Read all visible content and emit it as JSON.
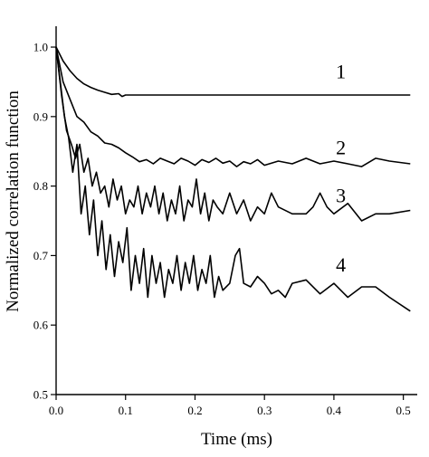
{
  "chart_data": {
    "type": "line",
    "xlabel": "Time (ms)",
    "ylabel": "Normalized correlation function",
    "xlim": [
      0.0,
      0.52
    ],
    "ylim": [
      0.5,
      1.03
    ],
    "xticks": [
      0.0,
      0.1,
      0.2,
      0.3,
      0.4,
      0.5
    ],
    "xtick_labels": [
      "0.0",
      "0.1",
      "0.2",
      "0.3",
      "0.4",
      "0.5"
    ],
    "yticks": [
      0.5,
      0.6,
      0.7,
      0.8,
      0.9,
      1.0
    ],
    "ytick_labels": [
      "0.5",
      "0.6",
      "0.7",
      "0.8",
      "0.9",
      "1.0"
    ],
    "grid": false,
    "legend": "none",
    "series": [
      {
        "label": "1",
        "label_at": [
          0.41,
          0.955
        ],
        "x": [
          0.0,
          0.01,
          0.02,
          0.03,
          0.04,
          0.05,
          0.06,
          0.07,
          0.08,
          0.09,
          0.095,
          0.1,
          0.51
        ],
        "y": [
          1.0,
          0.98,
          0.966,
          0.955,
          0.947,
          0.942,
          0.938,
          0.935,
          0.932,
          0.933,
          0.929,
          0.931,
          0.931
        ]
      },
      {
        "label": "2",
        "label_at": [
          0.41,
          0.846
        ],
        "x": [
          0.0,
          0.01,
          0.02,
          0.03,
          0.04,
          0.05,
          0.06,
          0.07,
          0.08,
          0.09,
          0.1,
          0.11,
          0.12,
          0.13,
          0.14,
          0.15,
          0.16,
          0.17,
          0.18,
          0.19,
          0.2,
          0.21,
          0.22,
          0.23,
          0.24,
          0.25,
          0.26,
          0.27,
          0.28,
          0.29,
          0.3,
          0.32,
          0.34,
          0.36,
          0.38,
          0.4,
          0.42,
          0.44,
          0.46,
          0.48,
          0.51
        ],
        "y": [
          1.0,
          0.95,
          0.925,
          0.9,
          0.892,
          0.878,
          0.872,
          0.862,
          0.86,
          0.855,
          0.848,
          0.842,
          0.835,
          0.838,
          0.832,
          0.84,
          0.836,
          0.832,
          0.84,
          0.836,
          0.83,
          0.838,
          0.834,
          0.84,
          0.833,
          0.836,
          0.828,
          0.835,
          0.832,
          0.838,
          0.83,
          0.836,
          0.832,
          0.84,
          0.832,
          0.836,
          0.832,
          0.828,
          0.84,
          0.836,
          0.832
        ]
      },
      {
        "label": "3",
        "label_at": [
          0.41,
          0.777
        ],
        "x": [
          0.0,
          0.008,
          0.015,
          0.022,
          0.028,
          0.034,
          0.04,
          0.046,
          0.052,
          0.058,
          0.064,
          0.07,
          0.076,
          0.082,
          0.088,
          0.094,
          0.1,
          0.106,
          0.112,
          0.118,
          0.124,
          0.13,
          0.136,
          0.142,
          0.148,
          0.154,
          0.16,
          0.166,
          0.172,
          0.178,
          0.184,
          0.19,
          0.196,
          0.202,
          0.208,
          0.214,
          0.22,
          0.226,
          0.232,
          0.24,
          0.25,
          0.26,
          0.27,
          0.28,
          0.29,
          0.3,
          0.31,
          0.32,
          0.34,
          0.36,
          0.37,
          0.38,
          0.39,
          0.4,
          0.42,
          0.44,
          0.46,
          0.48,
          0.51
        ],
        "y": [
          1.0,
          0.93,
          0.88,
          0.86,
          0.84,
          0.86,
          0.82,
          0.84,
          0.8,
          0.82,
          0.79,
          0.8,
          0.77,
          0.81,
          0.78,
          0.8,
          0.76,
          0.78,
          0.77,
          0.8,
          0.76,
          0.79,
          0.77,
          0.8,
          0.76,
          0.79,
          0.75,
          0.78,
          0.76,
          0.8,
          0.75,
          0.78,
          0.77,
          0.81,
          0.76,
          0.79,
          0.75,
          0.78,
          0.77,
          0.76,
          0.79,
          0.76,
          0.78,
          0.75,
          0.77,
          0.76,
          0.79,
          0.77,
          0.76,
          0.76,
          0.77,
          0.79,
          0.77,
          0.76,
          0.775,
          0.75,
          0.76,
          0.76,
          0.765
        ]
      },
      {
        "label": "4",
        "label_at": [
          0.41,
          0.677
        ],
        "x": [
          0.0,
          0.006,
          0.012,
          0.018,
          0.024,
          0.03,
          0.036,
          0.042,
          0.048,
          0.054,
          0.06,
          0.066,
          0.072,
          0.078,
          0.084,
          0.09,
          0.096,
          0.102,
          0.108,
          0.114,
          0.12,
          0.126,
          0.132,
          0.138,
          0.144,
          0.15,
          0.156,
          0.162,
          0.168,
          0.174,
          0.18,
          0.186,
          0.192,
          0.198,
          0.204,
          0.21,
          0.216,
          0.222,
          0.228,
          0.234,
          0.24,
          0.25,
          0.258,
          0.264,
          0.27,
          0.28,
          0.29,
          0.3,
          0.31,
          0.32,
          0.33,
          0.34,
          0.36,
          0.38,
          0.4,
          0.42,
          0.44,
          0.46,
          0.48,
          0.51
        ],
        "y": [
          1.0,
          0.95,
          0.9,
          0.87,
          0.82,
          0.86,
          0.76,
          0.8,
          0.73,
          0.78,
          0.7,
          0.75,
          0.68,
          0.73,
          0.67,
          0.72,
          0.69,
          0.74,
          0.65,
          0.7,
          0.66,
          0.71,
          0.64,
          0.7,
          0.66,
          0.69,
          0.64,
          0.68,
          0.66,
          0.7,
          0.65,
          0.69,
          0.66,
          0.7,
          0.65,
          0.68,
          0.66,
          0.7,
          0.64,
          0.67,
          0.65,
          0.66,
          0.7,
          0.71,
          0.66,
          0.655,
          0.67,
          0.66,
          0.645,
          0.65,
          0.64,
          0.66,
          0.665,
          0.645,
          0.66,
          0.64,
          0.655,
          0.655,
          0.64,
          0.62
        ]
      }
    ]
  }
}
